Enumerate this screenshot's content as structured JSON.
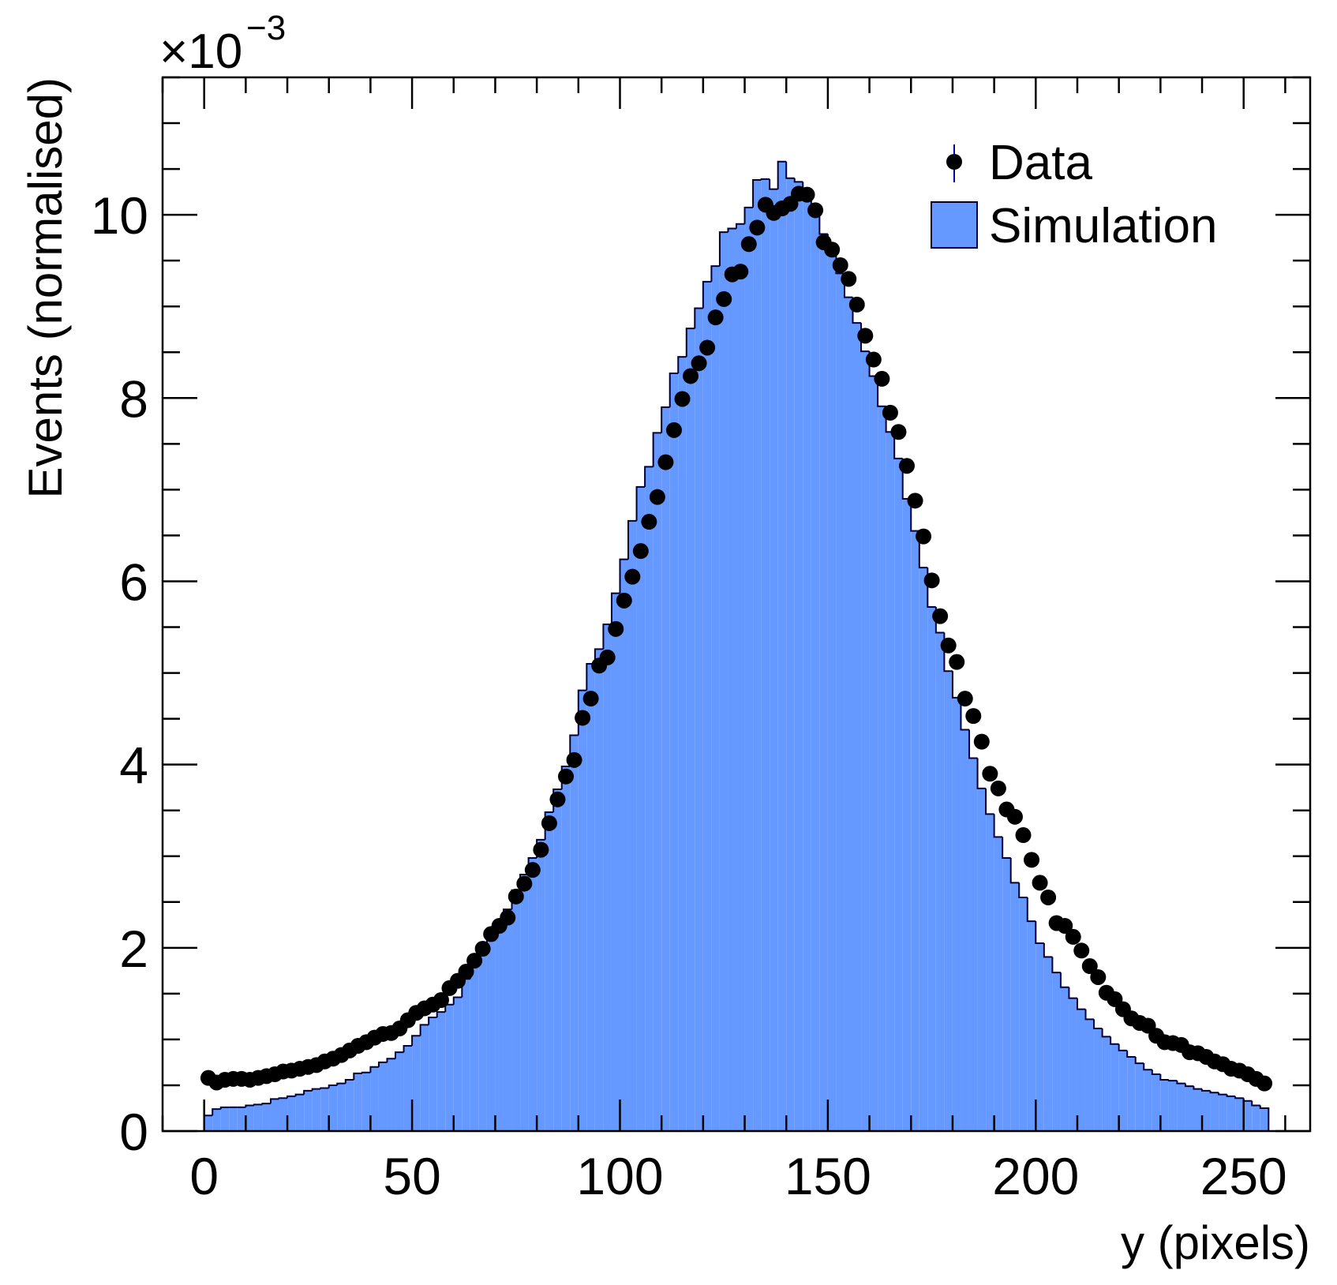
{
  "chart_data": {
    "type": "histogram",
    "x_label": "y (pixels)",
    "y_label": "Events (normalised)",
    "y_multiplier": {
      "base": "×10",
      "exponent": "−3"
    },
    "xlim": [
      -10,
      266
    ],
    "xticks": [
      0,
      50,
      100,
      150,
      200,
      250
    ],
    "ylim": [
      0,
      11.5
    ],
    "yticks": [
      0,
      2,
      4,
      6,
      8,
      10
    ],
    "x_minor_divisions": 5,
    "y_minor_divisions": 4,
    "legend_position": "upper right",
    "bins": [
      0,
      2,
      4,
      6,
      8,
      10,
      12,
      14,
      16,
      18,
      20,
      22,
      24,
      26,
      28,
      30,
      32,
      34,
      36,
      38,
      40,
      42,
      44,
      46,
      48,
      50,
      52,
      54,
      56,
      58,
      60,
      62,
      64,
      66,
      68,
      70,
      72,
      74,
      76,
      78,
      80,
      82,
      84,
      86,
      88,
      90,
      92,
      94,
      96,
      98,
      100,
      102,
      104,
      106,
      108,
      110,
      112,
      114,
      116,
      118,
      120,
      122,
      124,
      126,
      128,
      130,
      132,
      134,
      136,
      138,
      140,
      142,
      144,
      146,
      148,
      150,
      152,
      154,
      156,
      158,
      160,
      162,
      164,
      166,
      168,
      170,
      172,
      174,
      176,
      178,
      180,
      182,
      184,
      186,
      188,
      190,
      192,
      194,
      196,
      198,
      200,
      202,
      204,
      206,
      208,
      210,
      212,
      214,
      216,
      218,
      220,
      222,
      224,
      226,
      228,
      230,
      232,
      234,
      236,
      238,
      240,
      242,
      244,
      246,
      248,
      250,
      252,
      254,
      256
    ],
    "series": [
      {
        "name": "Simulation",
        "kind": "histogram",
        "color": "#6699ff",
        "edge_color": "#000033",
        "values": [
          0.17,
          0.24,
          0.26,
          0.26,
          0.26,
          0.28,
          0.29,
          0.3,
          0.35,
          0.36,
          0.38,
          0.4,
          0.44,
          0.46,
          0.47,
          0.5,
          0.52,
          0.56,
          0.63,
          0.64,
          0.7,
          0.75,
          0.79,
          0.86,
          0.93,
          1.04,
          1.16,
          1.24,
          1.3,
          1.38,
          1.46,
          1.66,
          1.8,
          1.92,
          2.08,
          2.25,
          2.42,
          2.63,
          2.8,
          2.98,
          3.18,
          3.48,
          3.73,
          3.98,
          4.32,
          4.81,
          5.1,
          5.26,
          5.53,
          5.87,
          6.24,
          6.66,
          7.03,
          7.25,
          7.62,
          7.9,
          8.27,
          8.45,
          8.76,
          8.98,
          9.27,
          9.44,
          9.81,
          9.85,
          9.9,
          10.08,
          10.38,
          10.39,
          10.28,
          10.58,
          10.4,
          10.36,
          10.19,
          10.05,
          9.79,
          9.59,
          9.36,
          9.1,
          8.82,
          8.51,
          8.24,
          7.91,
          7.63,
          7.34,
          6.9,
          6.55,
          6.15,
          5.72,
          5.44,
          5.02,
          4.73,
          4.38,
          4.07,
          3.74,
          3.46,
          3.21,
          2.98,
          2.71,
          2.55,
          2.29,
          2.05,
          1.9,
          1.73,
          1.57,
          1.45,
          1.33,
          1.22,
          1.12,
          1.03,
          0.95,
          0.88,
          0.81,
          0.74,
          0.67,
          0.62,
          0.56,
          0.55,
          0.52,
          0.49,
          0.46,
          0.44,
          0.42,
          0.4,
          0.38,
          0.36,
          0.33,
          0.28,
          0.25
        ]
      },
      {
        "name": "Data",
        "kind": "points",
        "color": "#000000",
        "error_color": "#000099",
        "x": [
          1,
          3,
          5,
          7,
          9,
          11,
          13,
          15,
          17,
          19,
          21,
          23,
          25,
          27,
          29,
          31,
          33,
          35,
          37,
          39,
          41,
          43,
          45,
          47,
          49,
          51,
          53,
          55,
          57,
          59,
          61,
          63,
          65,
          67,
          69,
          71,
          73,
          75,
          77,
          79,
          81,
          83,
          85,
          87,
          89,
          91,
          93,
          95,
          97,
          99,
          101,
          103,
          105,
          107,
          109,
          111,
          113,
          115,
          117,
          119,
          121,
          123,
          125,
          127,
          129,
          131,
          133,
          135,
          137,
          139,
          141,
          143,
          145,
          147,
          149,
          151,
          153,
          155,
          157,
          159,
          161,
          163,
          165,
          167,
          169,
          171,
          173,
          175,
          177,
          179,
          181,
          183,
          185,
          187,
          189,
          191,
          193,
          195,
          197,
          199,
          201,
          203,
          205,
          207,
          209,
          211,
          213,
          215,
          217,
          219,
          221,
          223,
          225,
          227,
          229,
          231,
          233,
          235,
          237,
          239,
          241,
          243,
          245,
          247,
          249,
          251,
          253,
          255
        ],
        "values": [
          0.58,
          0.53,
          0.56,
          0.57,
          0.57,
          0.56,
          0.58,
          0.6,
          0.62,
          0.65,
          0.66,
          0.68,
          0.7,
          0.72,
          0.76,
          0.79,
          0.83,
          0.88,
          0.93,
          0.97,
          1.02,
          1.06,
          1.07,
          1.12,
          1.21,
          1.29,
          1.34,
          1.38,
          1.43,
          1.56,
          1.64,
          1.74,
          1.86,
          1.99,
          2.15,
          2.24,
          2.33,
          2.56,
          2.7,
          2.85,
          3.07,
          3.36,
          3.62,
          3.87,
          4.05,
          4.51,
          4.72,
          5.08,
          5.17,
          5.48,
          5.79,
          6.05,
          6.33,
          6.65,
          6.92,
          7.3,
          7.65,
          7.99,
          8.24,
          8.38,
          8.55,
          8.88,
          9.08,
          9.35,
          9.38,
          9.68,
          9.86,
          10.11,
          10.02,
          10.07,
          10.12,
          10.23,
          10.22,
          10.05,
          9.7,
          9.62,
          9.45,
          9.3,
          9.02,
          8.68,
          8.42,
          8.21,
          7.84,
          7.63,
          7.26,
          6.88,
          6.49,
          6.01,
          5.62,
          5.3,
          5.12,
          4.72,
          4.53,
          4.25,
          3.9,
          3.74,
          3.51,
          3.43,
          3.23,
          2.96,
          2.71,
          2.55,
          2.27,
          2.24,
          2.12,
          1.97,
          1.8,
          1.68,
          1.51,
          1.44,
          1.33,
          1.23,
          1.18,
          1.15,
          1.04,
          0.97,
          0.96,
          0.94,
          0.86,
          0.85,
          0.81,
          0.76,
          0.73,
          0.68,
          0.66,
          0.62,
          0.57,
          0.52
        ]
      }
    ]
  }
}
